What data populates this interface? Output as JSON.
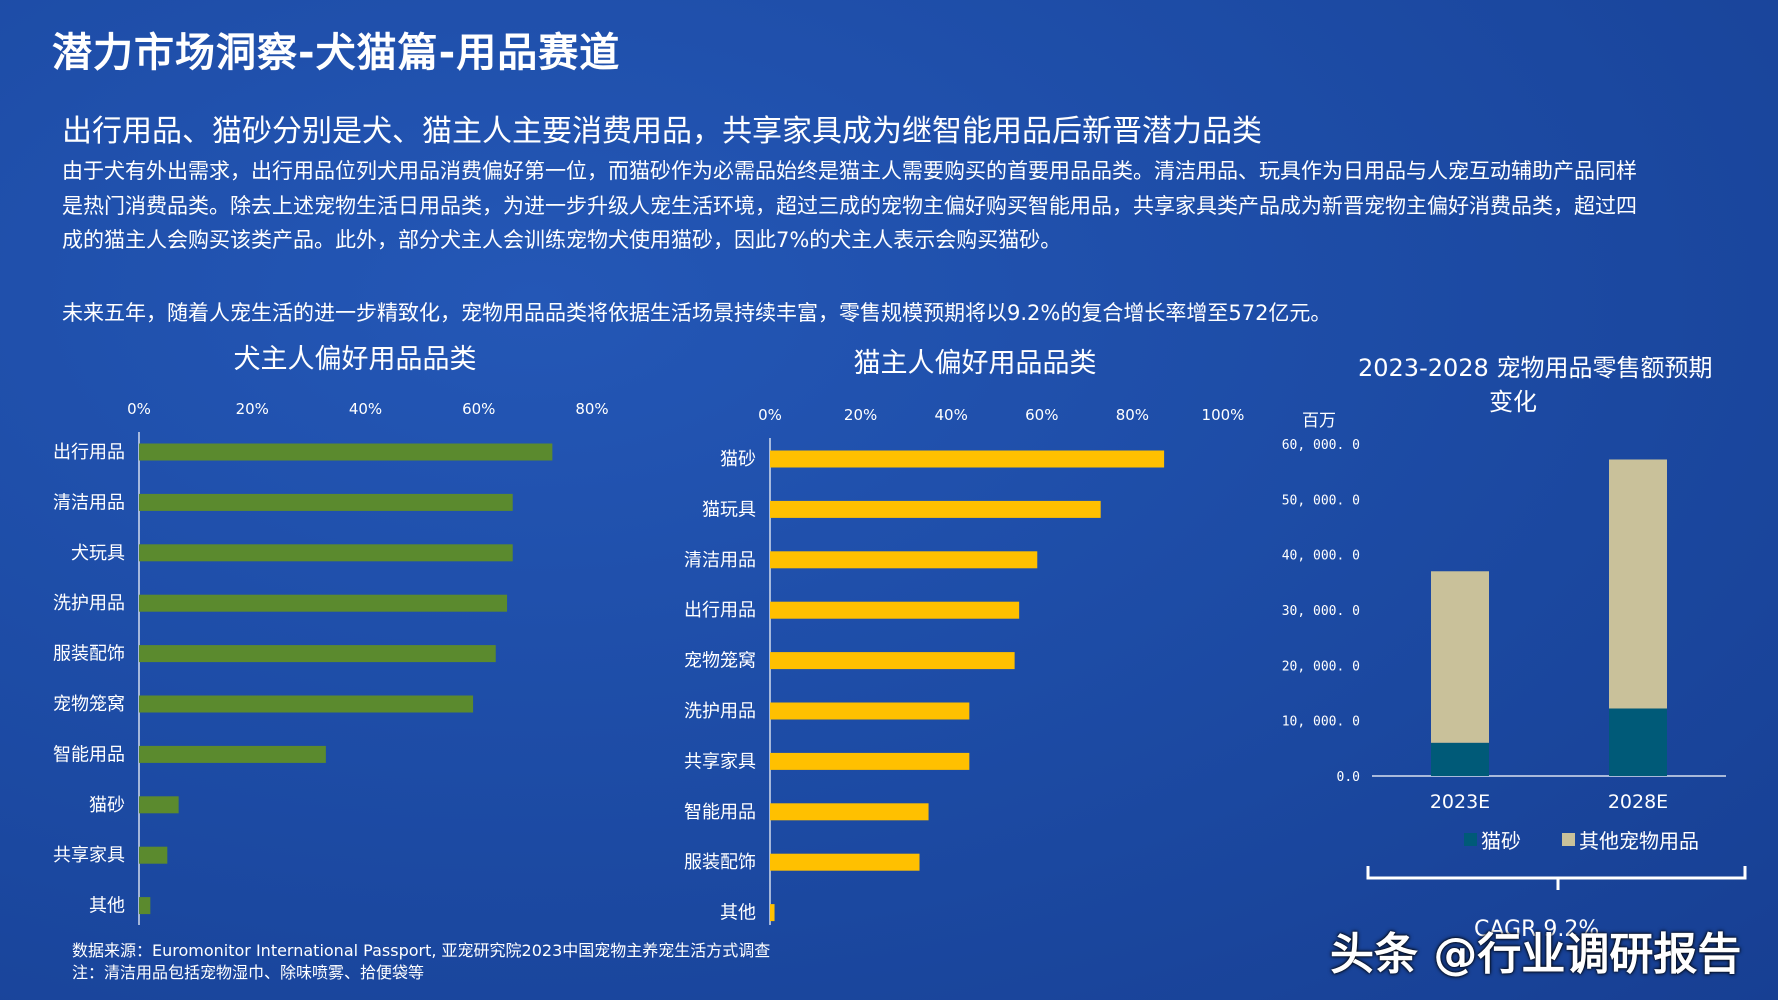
{
  "header": {
    "title": "潜力市场洞察-犬猫篇-用品赛道",
    "subtitle": "出行用品、猫砂分别是犬、猫主人主要消费用品，共享家具成为继智能用品后新晋潜力品类"
  },
  "body": {
    "paragraph1": "由于犬有外出需求，出行用品位列犬用品消费偏好第一位，而猫砂作为必需品始终是猫主人需要购买的首要用品品类。清洁用品、玩具作为日用品与人宠互动辅助产品同样是热门消费品类。除去上述宠物生活日用品类，为进一步升级人宠生活环境，超过三成的宠物主偏好购买智能用品，共享家具类产品成为新晋宠物主偏好消费品类，超过四成的猫主人会购买该类产品。此外，部分犬主人会训练宠物犬使用猫砂，因此7%的犬主人表示会购买猫砂。",
    "paragraph2": "未来五年，随着人宠生活的进一步精致化，宠物用品品类将依据生活场景持续丰富，零售规模预期将以9.2%的复合增长率增至572亿元。"
  },
  "colors": {
    "background": "#1c4aa3",
    "dog_bar": "#5b8a2e",
    "cat_bar": "#ffc000",
    "litter": "#005a78",
    "other_supplies": "#c9c19a"
  },
  "chart_data": [
    {
      "type": "bar",
      "orientation": "horizontal",
      "title": "犬主人偏好用品品类",
      "categories": [
        "出行用品",
        "清洁用品",
        "犬玩具",
        "洗护用品",
        "服装配饰",
        "宠物笼窝",
        "智能用品",
        "猫砂",
        "共享家具",
        "其他"
      ],
      "values": [
        73,
        66,
        66,
        65,
        63,
        59,
        33,
        7,
        5,
        2
      ],
      "xlim": [
        0,
        80
      ],
      "ticks": [
        "0%",
        "20%",
        "40%",
        "60%",
        "80%"
      ],
      "tick_values": [
        0,
        20,
        40,
        60,
        80
      ]
    },
    {
      "type": "bar",
      "orientation": "horizontal",
      "title": "猫主人偏好用品品类",
      "categories": [
        "猫砂",
        "猫玩具",
        "清洁用品",
        "出行用品",
        "宠物笼窝",
        "洗护用品",
        "共享家具",
        "智能用品",
        "服装配饰",
        "其他"
      ],
      "values": [
        87,
        73,
        59,
        55,
        54,
        44,
        44,
        35,
        33,
        1
      ],
      "xlim": [
        0,
        100
      ],
      "ticks": [
        "0%",
        "20%",
        "40%",
        "60%",
        "80%",
        "100%"
      ],
      "tick_values": [
        0,
        20,
        40,
        60,
        80,
        100
      ]
    },
    {
      "type": "bar",
      "stacked": true,
      "title": "2023-2028  宠物用品零售额预期变化",
      "unit": "百万",
      "categories": [
        "2023E",
        "2028E"
      ],
      "series": [
        {
          "name": "猫砂",
          "values": [
            6000,
            12200
          ]
        },
        {
          "name": "其他宠物用品",
          "values": [
            31000,
            45000
          ]
        }
      ],
      "ylim": [
        0,
        60000
      ],
      "ticks": [
        "0.0",
        "10, 000. 0",
        "20, 000. 0",
        "30, 000. 0",
        "40, 000. 0",
        "50, 000. 0",
        "60, 000. 0"
      ],
      "tick_values": [
        0,
        10000,
        20000,
        30000,
        40000,
        50000,
        60000
      ],
      "legend_position": "bottom",
      "cagr_label": "CAGR 9.2%"
    }
  ],
  "footer": {
    "source": "数据来源：Euromonitor International Passport, 亚宠研究院2023中国宠物主养宠生活方式调查",
    "note": "注：清洁用品包括宠物湿巾、除味喷雾、拾便袋等",
    "watermark": "头条 @行业调研报告"
  }
}
